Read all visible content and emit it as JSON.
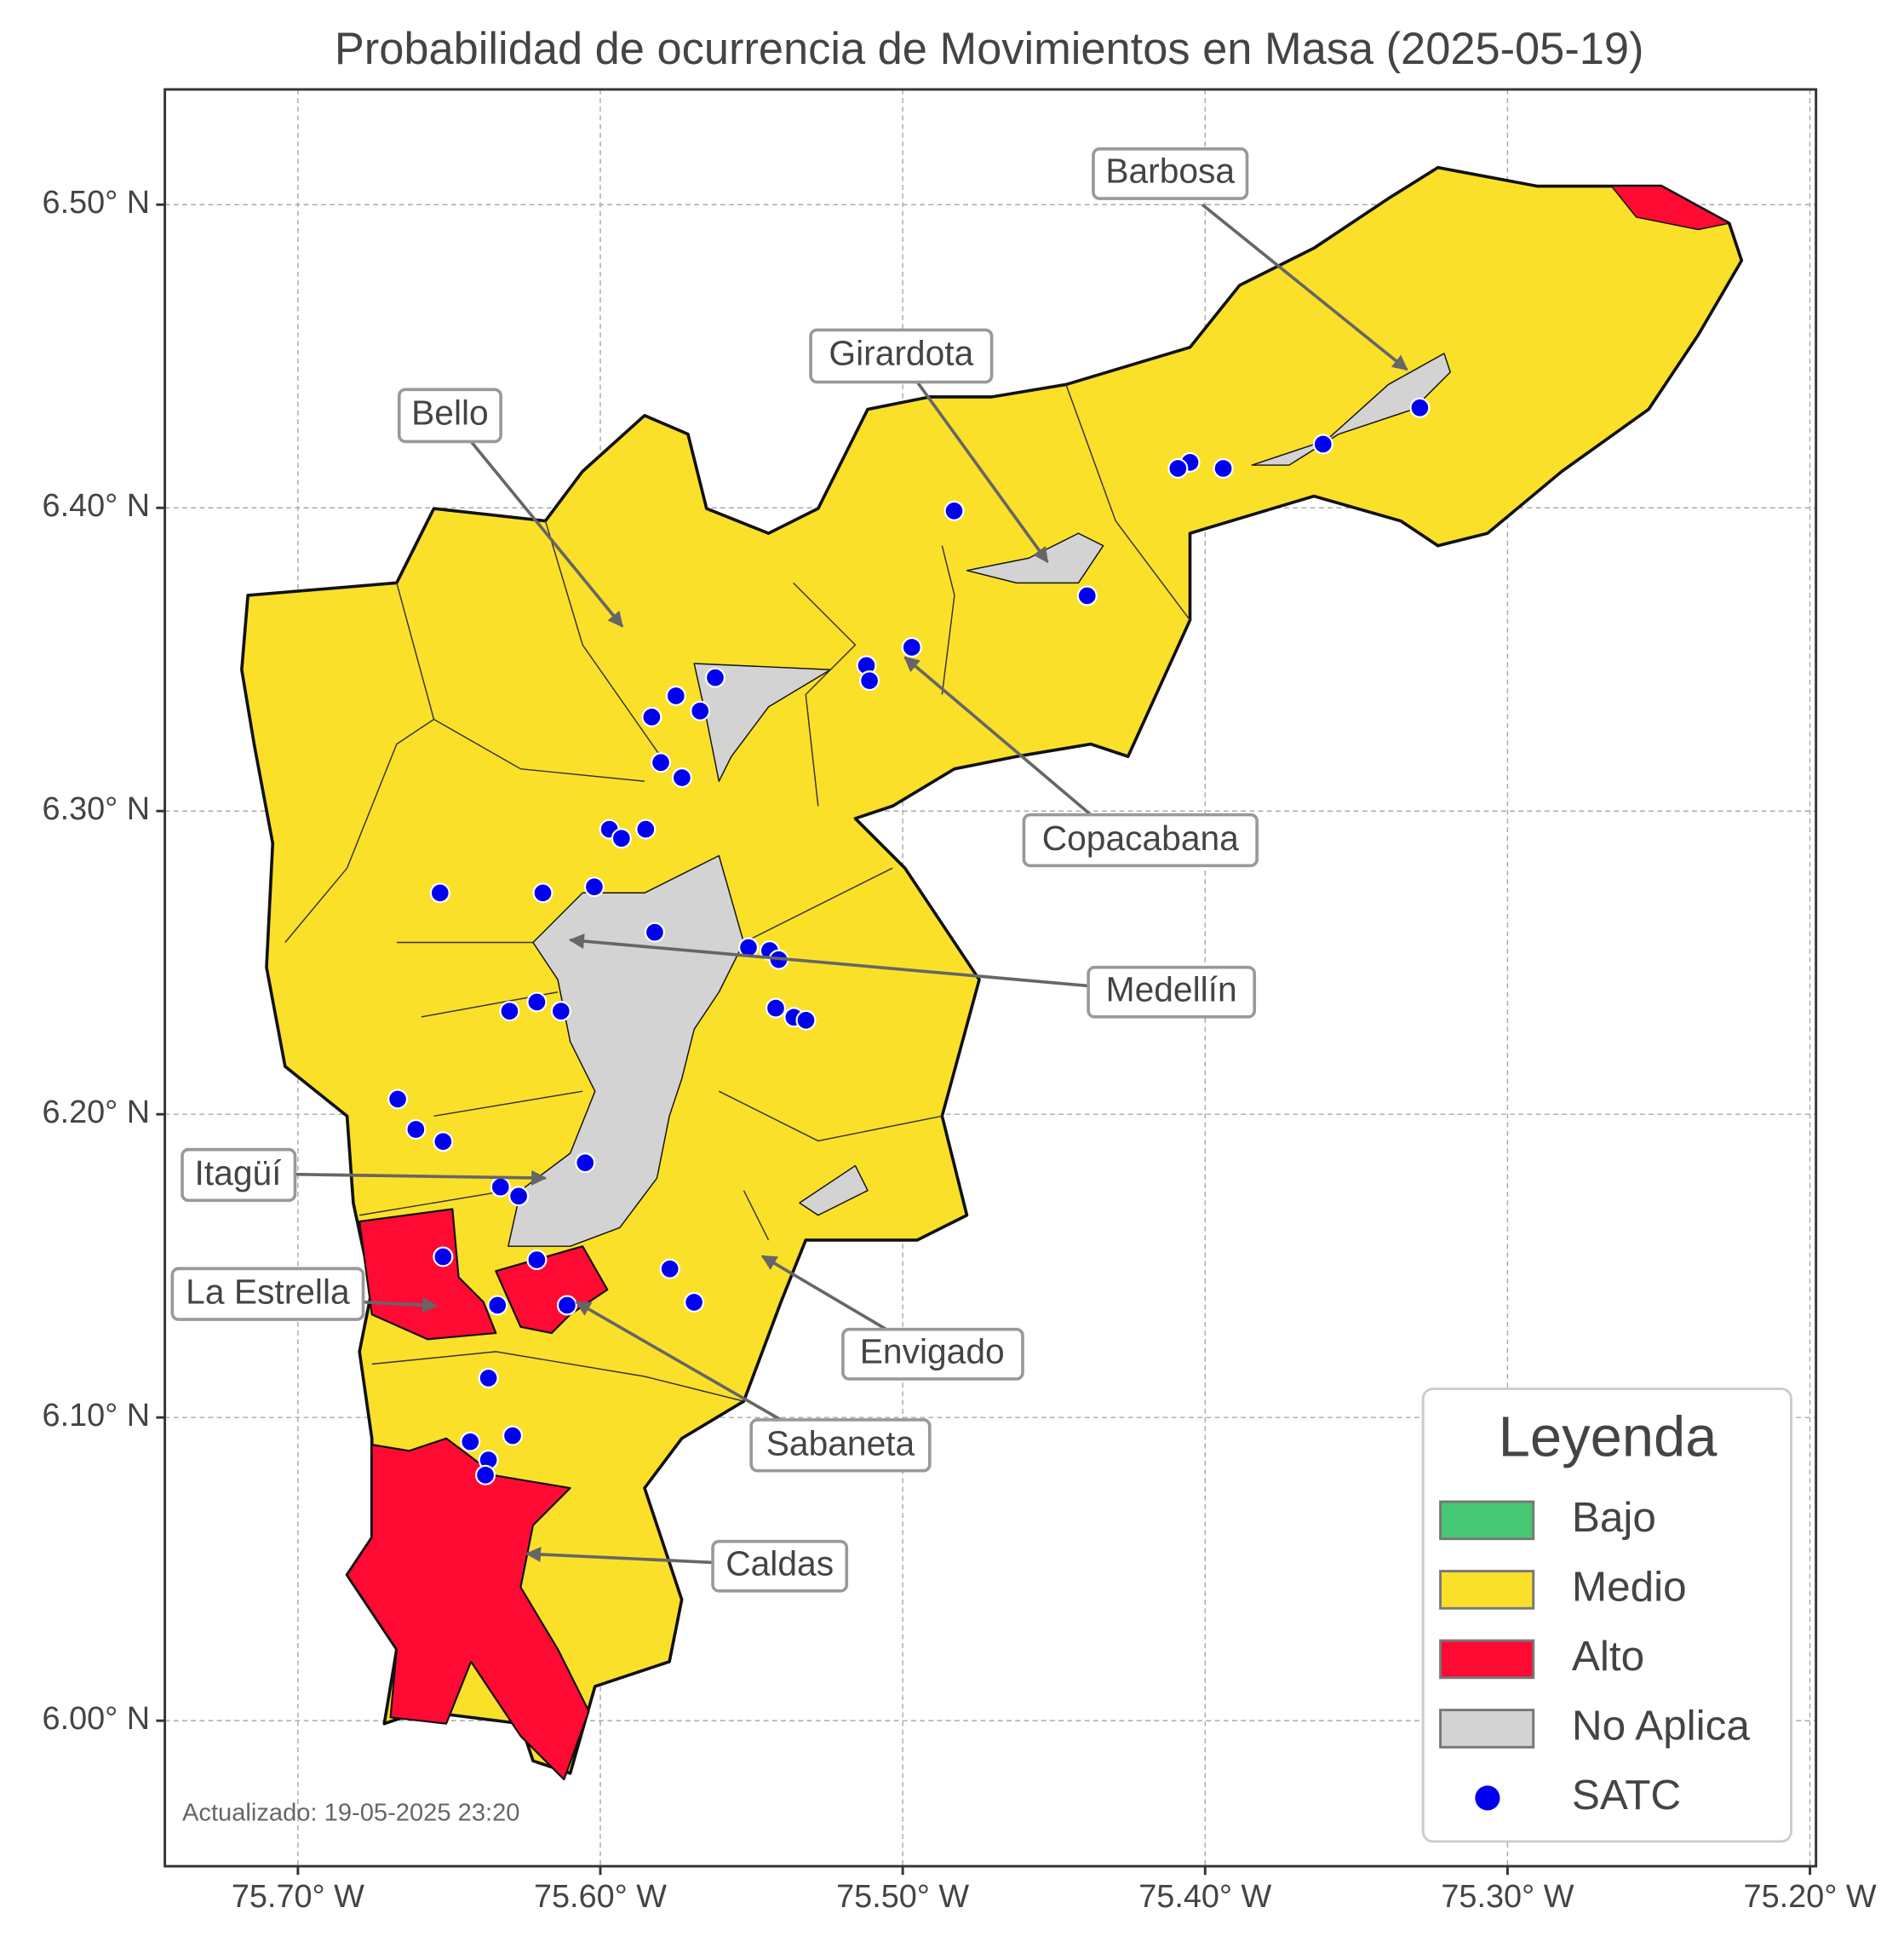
{
  "title": "Probabilidad de ocurrencia de Movimientos en Masa (2025-05-19)",
  "map": {
    "xlim": [
      -75.744,
      -75.198
    ],
    "ylim": [
      5.952,
      6.538
    ],
    "grid": true,
    "xticks": [
      {
        "value": -75.7,
        "label": "75.70° W"
      },
      {
        "value": -75.6,
        "label": "75.60° W"
      },
      {
        "value": -75.5,
        "label": "75.50° W"
      },
      {
        "value": -75.4,
        "label": "75.40° W"
      },
      {
        "value": -75.3,
        "label": "75.30° W"
      },
      {
        "value": -75.2,
        "label": "75.20° W"
      }
    ],
    "yticks": [
      {
        "value": 6.0,
        "label": "6.00° N"
      },
      {
        "value": 6.1,
        "label": "6.10° N"
      },
      {
        "value": 6.2,
        "label": "6.20° N"
      },
      {
        "value": 6.3,
        "label": "6.30° N"
      },
      {
        "value": 6.4,
        "label": "6.40° N"
      },
      {
        "value": 6.5,
        "label": "6.50° N"
      }
    ]
  },
  "annotations": [
    "Barbosa",
    "Girardota",
    "Bello",
    "Copacabana",
    "Medellín",
    "Itagüí",
    "La Estrella",
    "Envigado",
    "Sabaneta",
    "Caldas"
  ],
  "legend": {
    "title": "Leyenda",
    "items": [
      {
        "label": "Bajo",
        "color": "#48c774"
      },
      {
        "label": "Medio",
        "color": "#fbe02a"
      },
      {
        "label": "Alto",
        "color": "#ff0a33"
      },
      {
        "label": "No Aplica",
        "color": "#d3d3d3"
      },
      {
        "label": "SATC",
        "color": "#0000ee"
      }
    ]
  },
  "stations": [
    [
      -75.329,
      6.433
    ],
    [
      -75.361,
      6.421
    ],
    [
      -75.394,
      6.413
    ],
    [
      -75.405,
      6.415
    ],
    [
      -75.409,
      6.413
    ],
    [
      -75.483,
      6.399
    ],
    [
      -75.439,
      6.371
    ],
    [
      -75.497,
      6.354
    ],
    [
      -75.512,
      6.348
    ],
    [
      -75.511,
      6.343
    ],
    [
      -75.562,
      6.344
    ],
    [
      -75.575,
      6.338
    ],
    [
      -75.567,
      6.333
    ],
    [
      -75.583,
      6.331
    ],
    [
      -75.58,
      6.316
    ],
    [
      -75.573,
      6.311
    ],
    [
      -75.597,
      6.294
    ],
    [
      -75.593,
      6.291
    ],
    [
      -75.585,
      6.294
    ],
    [
      -75.653,
      6.273
    ],
    [
      -75.619,
      6.273
    ],
    [
      -75.602,
      6.275
    ],
    [
      -75.582,
      6.26
    ],
    [
      -75.551,
      6.255
    ],
    [
      -75.544,
      6.254
    ],
    [
      -75.541,
      6.251
    ],
    [
      -75.542,
      6.235
    ],
    [
      -75.536,
      6.232
    ],
    [
      -75.532,
      6.231
    ],
    [
      -75.63,
      6.234
    ],
    [
      -75.621,
      6.237
    ],
    [
      -75.613,
      6.234
    ],
    [
      -75.667,
      6.205
    ],
    [
      -75.661,
      6.195
    ],
    [
      -75.652,
      6.191
    ],
    [
      -75.605,
      6.184
    ],
    [
      -75.633,
      6.176
    ],
    [
      -75.627,
      6.173
    ],
    [
      -75.652,
      6.153
    ],
    [
      -75.621,
      6.152
    ],
    [
      -75.577,
      6.149
    ],
    [
      -75.569,
      6.138
    ],
    [
      -75.634,
      6.137
    ],
    [
      -75.611,
      6.137
    ],
    [
      -75.637,
      6.113
    ],
    [
      -75.643,
      6.092
    ],
    [
      -75.629,
      6.094
    ],
    [
      -75.637,
      6.086
    ],
    [
      -75.638,
      6.081
    ]
  ],
  "footer": "Actualizado: 19-05-2025 23:20"
}
